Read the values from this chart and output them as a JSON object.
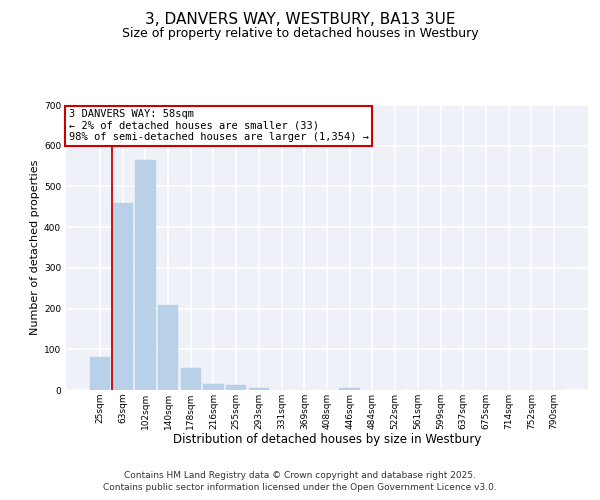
{
  "title": "3, DANVERS WAY, WESTBURY, BA13 3UE",
  "subtitle": "Size of property relative to detached houses in Westbury",
  "xlabel": "Distribution of detached houses by size in Westbury",
  "ylabel": "Number of detached properties",
  "categories": [
    "25sqm",
    "63sqm",
    "102sqm",
    "140sqm",
    "178sqm",
    "216sqm",
    "255sqm",
    "293sqm",
    "331sqm",
    "369sqm",
    "408sqm",
    "446sqm",
    "484sqm",
    "522sqm",
    "561sqm",
    "599sqm",
    "637sqm",
    "675sqm",
    "714sqm",
    "752sqm",
    "790sqm"
  ],
  "values": [
    80,
    460,
    565,
    208,
    55,
    15,
    12,
    5,
    0,
    0,
    0,
    4,
    0,
    0,
    0,
    0,
    0,
    0,
    0,
    0,
    0
  ],
  "bar_color": "#b8d0e8",
  "highlight_line_color": "#cc0000",
  "annotation_text": "3 DANVERS WAY: 58sqm\n← 2% of detached houses are smaller (33)\n98% of semi-detached houses are larger (1,354) →",
  "annotation_box_color": "#cc0000",
  "ylim": [
    0,
    700
  ],
  "yticks": [
    0,
    100,
    200,
    300,
    400,
    500,
    600,
    700
  ],
  "bg_color": "#eef2f8",
  "grid_color": "#ffffff",
  "footer": "Contains HM Land Registry data © Crown copyright and database right 2025.\nContains public sector information licensed under the Open Government Licence v3.0.",
  "title_fontsize": 11,
  "subtitle_fontsize": 9,
  "xlabel_fontsize": 8.5,
  "ylabel_fontsize": 8,
  "tick_fontsize": 6.5,
  "annotation_fontsize": 7.5,
  "footer_fontsize": 6.5
}
